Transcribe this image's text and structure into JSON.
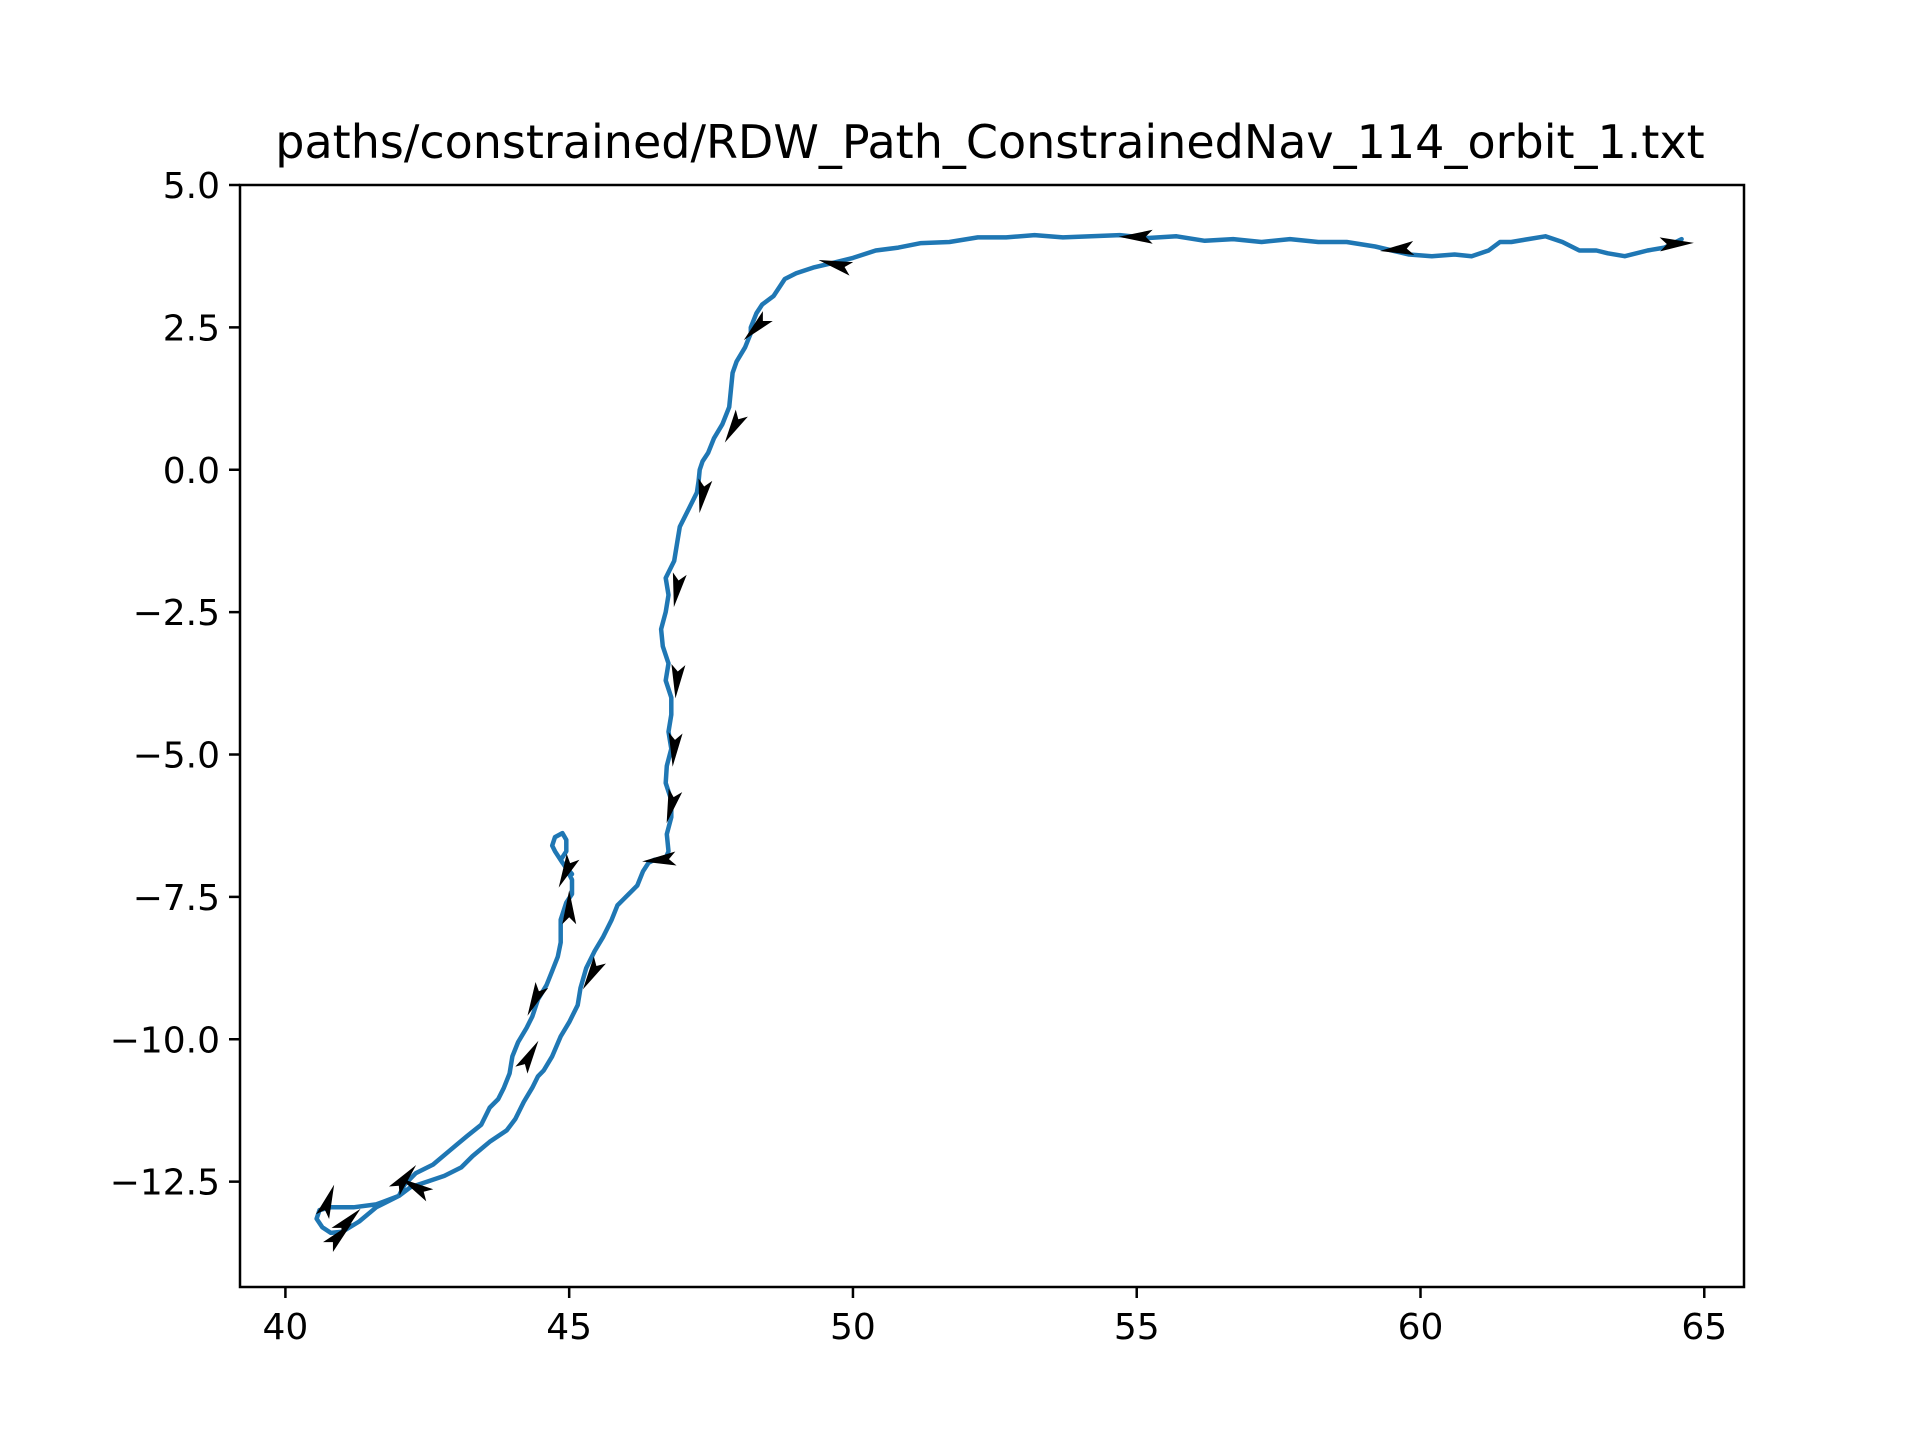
{
  "chart_data": {
    "type": "line",
    "title": "paths/constrained/RDW_Path_ConstrainedNav_114_orbit_1.txt",
    "xlabel": "",
    "ylabel": "",
    "xlim": [
      39.2,
      65.7
    ],
    "ylim": [
      -14.35,
      5.0
    ],
    "x_ticks": [
      {
        "value": 40,
        "label": "40"
      },
      {
        "value": 45,
        "label": "45"
      },
      {
        "value": 50,
        "label": "50"
      },
      {
        "value": 55,
        "label": "55"
      },
      {
        "value": 60,
        "label": "60"
      },
      {
        "value": 65,
        "label": "65"
      }
    ],
    "y_ticks": [
      {
        "value": 5.0,
        "label": "5.0"
      },
      {
        "value": 2.5,
        "label": "2.5"
      },
      {
        "value": 0.0,
        "label": "0.0"
      },
      {
        "value": -2.5,
        "label": "−2.5"
      },
      {
        "value": -5.0,
        "label": "−5.0"
      },
      {
        "value": -7.5,
        "label": "−7.5"
      },
      {
        "value": -10.0,
        "label": "−10.0"
      },
      {
        "value": -12.5,
        "label": "−12.5"
      }
    ],
    "grid": false,
    "series": [
      {
        "color": "#1f77b4",
        "points": [
          [
            64.6,
            4.05
          ],
          [
            64.3,
            3.9
          ],
          [
            64.0,
            3.85
          ],
          [
            63.6,
            3.75
          ],
          [
            63.3,
            3.8
          ],
          [
            63.1,
            3.85
          ],
          [
            62.8,
            3.85
          ],
          [
            62.5,
            4.0
          ],
          [
            62.2,
            4.1
          ],
          [
            61.9,
            4.05
          ],
          [
            61.6,
            4.0
          ],
          [
            61.4,
            4.0
          ],
          [
            61.2,
            3.85
          ],
          [
            60.9,
            3.75
          ],
          [
            60.6,
            3.78
          ],
          [
            60.2,
            3.75
          ],
          [
            59.8,
            3.78
          ],
          [
            59.5,
            3.85
          ],
          [
            59.2,
            3.92
          ],
          [
            58.7,
            4.0
          ],
          [
            58.2,
            4.0
          ],
          [
            57.7,
            4.05
          ],
          [
            57.2,
            4.0
          ],
          [
            56.7,
            4.05
          ],
          [
            56.2,
            4.02
          ],
          [
            55.7,
            4.1
          ],
          [
            55.2,
            4.07
          ],
          [
            54.7,
            4.12
          ],
          [
            54.2,
            4.1
          ],
          [
            53.7,
            4.08
          ],
          [
            53.2,
            4.12
          ],
          [
            52.7,
            4.08
          ],
          [
            52.2,
            4.08
          ],
          [
            51.7,
            4.0
          ],
          [
            51.2,
            3.98
          ],
          [
            50.8,
            3.9
          ],
          [
            50.4,
            3.85
          ],
          [
            50.0,
            3.72
          ],
          [
            49.6,
            3.62
          ],
          [
            49.3,
            3.55
          ],
          [
            49.0,
            3.45
          ],
          [
            48.8,
            3.35
          ],
          [
            48.7,
            3.2
          ],
          [
            48.6,
            3.05
          ],
          [
            48.4,
            2.9
          ],
          [
            48.3,
            2.75
          ],
          [
            48.2,
            2.5
          ],
          [
            48.2,
            2.4
          ],
          [
            48.1,
            2.15
          ],
          [
            47.95,
            1.9
          ],
          [
            47.88,
            1.7
          ],
          [
            47.85,
            1.4
          ],
          [
            47.82,
            1.1
          ],
          [
            47.7,
            0.8
          ],
          [
            47.55,
            0.55
          ],
          [
            47.45,
            0.3
          ],
          [
            47.35,
            0.15
          ],
          [
            47.3,
            0.0
          ],
          [
            47.28,
            -0.2
          ],
          [
            47.25,
            -0.4
          ],
          [
            47.1,
            -0.7
          ],
          [
            46.95,
            -1.0
          ],
          [
            46.9,
            -1.3
          ],
          [
            46.85,
            -1.6
          ],
          [
            46.7,
            -1.9
          ],
          [
            46.75,
            -2.2
          ],
          [
            46.7,
            -2.5
          ],
          [
            46.62,
            -2.8
          ],
          [
            46.65,
            -3.1
          ],
          [
            46.75,
            -3.4
          ],
          [
            46.7,
            -3.7
          ],
          [
            46.8,
            -4.0
          ],
          [
            46.8,
            -4.3
          ],
          [
            46.75,
            -4.6
          ],
          [
            46.8,
            -4.9
          ],
          [
            46.72,
            -5.2
          ],
          [
            46.7,
            -5.5
          ],
          [
            46.8,
            -5.8
          ],
          [
            46.8,
            -6.1
          ],
          [
            46.72,
            -6.4
          ],
          [
            46.75,
            -6.7
          ],
          [
            46.7,
            -6.82
          ],
          [
            46.5,
            -6.85
          ],
          [
            46.4,
            -6.9
          ],
          [
            46.3,
            -7.05
          ],
          [
            46.2,
            -7.3
          ],
          [
            46.05,
            -7.45
          ],
          [
            45.95,
            -7.55
          ],
          [
            45.85,
            -7.65
          ],
          [
            45.75,
            -7.9
          ],
          [
            45.6,
            -8.2
          ],
          [
            45.45,
            -8.45
          ],
          [
            45.3,
            -8.75
          ],
          [
            45.2,
            -9.1
          ],
          [
            45.15,
            -9.4
          ],
          [
            45.0,
            -9.7
          ],
          [
            44.85,
            -9.95
          ],
          [
            44.7,
            -10.3
          ],
          [
            44.55,
            -10.55
          ],
          [
            44.45,
            -10.65
          ],
          [
            44.35,
            -10.85
          ],
          [
            44.2,
            -11.1
          ],
          [
            44.05,
            -11.4
          ],
          [
            43.9,
            -11.6
          ],
          [
            43.6,
            -11.8
          ],
          [
            43.3,
            -12.05
          ],
          [
            43.1,
            -12.25
          ],
          [
            42.8,
            -12.4
          ],
          [
            42.5,
            -12.5
          ],
          [
            42.2,
            -12.6
          ],
          [
            42.0,
            -12.75
          ],
          [
            41.6,
            -12.9
          ],
          [
            41.2,
            -12.95
          ],
          [
            40.8,
            -12.95
          ],
          [
            40.6,
            -13.0
          ],
          [
            40.55,
            -13.15
          ],
          [
            40.65,
            -13.3
          ],
          [
            40.8,
            -13.4
          ],
          [
            41.0,
            -13.38
          ],
          [
            41.3,
            -13.2
          ],
          [
            41.6,
            -12.95
          ],
          [
            42.0,
            -12.75
          ],
          [
            42.1,
            -12.55
          ],
          [
            42.3,
            -12.35
          ],
          [
            42.6,
            -12.2
          ],
          [
            42.9,
            -11.95
          ],
          [
            43.2,
            -11.7
          ],
          [
            43.45,
            -11.5
          ],
          [
            43.6,
            -11.2
          ],
          [
            43.75,
            -11.05
          ],
          [
            43.85,
            -10.85
          ],
          [
            43.95,
            -10.6
          ],
          [
            44.0,
            -10.3
          ],
          [
            44.1,
            -10.05
          ],
          [
            44.25,
            -9.8
          ],
          [
            44.35,
            -9.6
          ],
          [
            44.45,
            -9.3
          ],
          [
            44.6,
            -9.05
          ],
          [
            44.7,
            -8.8
          ],
          [
            44.8,
            -8.55
          ],
          [
            44.85,
            -8.3
          ],
          [
            44.85,
            -7.9
          ],
          [
            44.95,
            -7.6
          ],
          [
            45.05,
            -7.45
          ],
          [
            45.05,
            -7.2
          ],
          [
            44.95,
            -7.0
          ],
          [
            44.85,
            -6.85
          ],
          [
            44.95,
            -6.7
          ],
          [
            44.95,
            -6.5
          ],
          [
            44.88,
            -6.38
          ],
          [
            44.75,
            -6.45
          ],
          [
            44.7,
            -6.6
          ],
          [
            44.75,
            -6.7
          ],
          [
            44.88,
            -6.9
          ],
          [
            45.05,
            -7.1
          ]
        ]
      }
    ],
    "arrows": [
      [
        64.5,
        3.97,
        -2.6
      ],
      [
        59.6,
        3.87,
        175
      ],
      [
        55.0,
        4.09,
        180
      ],
      [
        49.7,
        3.6,
        -165
      ],
      [
        48.3,
        2.5,
        135
      ],
      [
        47.9,
        0.75,
        120
      ],
      [
        47.35,
        -0.45,
        100
      ],
      [
        46.9,
        -2.1,
        100
      ],
      [
        46.9,
        -3.7,
        95
      ],
      [
        46.85,
        -4.9,
        95
      ],
      [
        46.8,
        -5.9,
        105
      ],
      [
        46.6,
        -6.85,
        175
      ],
      [
        45.4,
        -8.85,
        120
      ],
      [
        44.95,
        -7.05,
        115
      ],
      [
        45.0,
        -7.7,
        -90
      ],
      [
        44.4,
        -9.3,
        115
      ],
      [
        44.3,
        -10.3,
        -60
      ],
      [
        42.3,
        -12.6,
        -150
      ],
      [
        42.1,
        -12.45,
        -50
      ],
      [
        41.1,
        -13.2,
        -45
      ],
      [
        40.95,
        -13.45,
        -45
      ],
      [
        40.75,
        -12.85,
        -70
      ]
    ]
  }
}
